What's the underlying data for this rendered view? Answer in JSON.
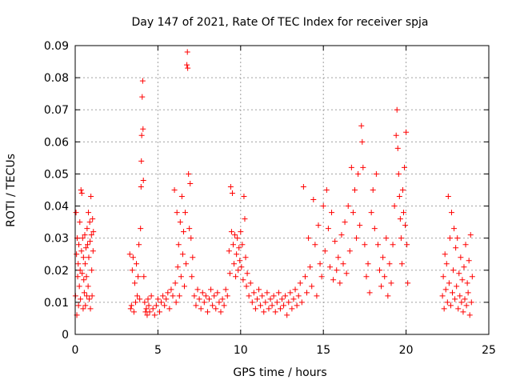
{
  "chart_data": {
    "type": "scatter",
    "title": "Day 147 of 2021, Rate Of TEC Index for receiver spja",
    "xlabel": "GPS time / hours",
    "ylabel": "ROTI / TECUs",
    "xlim": [
      0,
      25
    ],
    "ylim": [
      0,
      0.09
    ],
    "xticks": [
      "0",
      "5",
      "10",
      "15",
      "20",
      "25"
    ],
    "yticks": [
      "0",
      "0.01",
      "0.02",
      "0.03",
      "0.04",
      "0.05",
      "0.06",
      "0.07",
      "0.08",
      "0.09"
    ],
    "grid": true,
    "marker": "plus",
    "color": "#ff0000",
    "series": [
      {
        "points": [
          [
            0.02,
            0.012
          ],
          [
            0.05,
            0.038
          ],
          [
            0.08,
            0.025
          ],
          [
            0.1,
            0.006
          ],
          [
            0.12,
            0.03
          ],
          [
            0.15,
            0.018
          ],
          [
            0.18,
            0.022
          ],
          [
            0.2,
            0.009
          ],
          [
            0.22,
            0.028
          ],
          [
            0.25,
            0.015
          ],
          [
            0.28,
            0.035
          ],
          [
            0.3,
            0.02
          ],
          [
            0.32,
            0.011
          ],
          [
            0.35,
            0.045
          ],
          [
            0.38,
            0.026
          ],
          [
            0.4,
            0.044
          ],
          [
            0.42,
            0.019
          ],
          [
            0.45,
            0.03
          ],
          [
            0.48,
            0.008
          ],
          [
            0.5,
            0.024
          ],
          [
            0.52,
            0.017
          ],
          [
            0.55,
            0.013
          ],
          [
            0.58,
            0.031
          ],
          [
            0.6,
            0.022
          ],
          [
            0.62,
            0.009
          ],
          [
            0.65,
            0.027
          ],
          [
            0.68,
            0.018
          ],
          [
            0.7,
            0.012
          ],
          [
            0.72,
            0.033
          ],
          [
            0.75,
            0.028
          ],
          [
            0.78,
            0.015
          ],
          [
            0.8,
            0.038
          ],
          [
            0.82,
            0.024
          ],
          [
            0.85,
            0.011
          ],
          [
            0.88,
            0.035
          ],
          [
            0.9,
            0.029
          ],
          [
            0.92,
            0.008
          ],
          [
            0.95,
            0.043
          ],
          [
            0.98,
            0.031
          ],
          [
            1.0,
            0.02
          ],
          [
            1.02,
            0.012
          ],
          [
            1.05,
            0.036
          ],
          [
            1.08,
            0.026
          ],
          [
            1.1,
            0.032
          ],
          [
            3.3,
            0.025
          ],
          [
            3.35,
            0.008
          ],
          [
            3.4,
            0.009
          ],
          [
            3.45,
            0.02
          ],
          [
            3.5,
            0.024
          ],
          [
            3.55,
            0.007
          ],
          [
            3.6,
            0.016
          ],
          [
            3.65,
            0.01
          ],
          [
            3.7,
            0.022
          ],
          [
            3.75,
            0.012
          ],
          [
            3.8,
            0.018
          ],
          [
            3.85,
            0.028
          ],
          [
            3.9,
            0.011
          ],
          [
            3.95,
            0.033
          ],
          [
            3.98,
            0.046
          ],
          [
            4.0,
            0.054
          ],
          [
            4.02,
            0.062
          ],
          [
            4.05,
            0.074
          ],
          [
            4.08,
            0.079
          ],
          [
            4.1,
            0.064
          ],
          [
            4.12,
            0.048
          ],
          [
            4.15,
            0.018
          ],
          [
            4.2,
            0.01
          ],
          [
            4.25,
            0.007
          ],
          [
            4.3,
            0.008
          ],
          [
            4.35,
            0.006
          ],
          [
            4.4,
            0.011
          ],
          [
            4.45,
            0.009
          ],
          [
            4.5,
            0.007
          ],
          [
            4.6,
            0.012
          ],
          [
            4.7,
            0.008
          ],
          [
            4.8,
            0.006
          ],
          [
            4.9,
            0.009
          ],
          [
            5.0,
            0.011
          ],
          [
            5.1,
            0.007
          ],
          [
            5.2,
            0.01
          ],
          [
            5.3,
            0.012
          ],
          [
            5.4,
            0.009
          ],
          [
            5.5,
            0.011
          ],
          [
            5.6,
            0.013
          ],
          [
            5.7,
            0.008
          ],
          [
            5.8,
            0.014
          ],
          [
            5.9,
            0.012
          ],
          [
            6.0,
            0.045
          ],
          [
            6.05,
            0.016
          ],
          [
            6.1,
            0.01
          ],
          [
            6.15,
            0.038
          ],
          [
            6.2,
            0.021
          ],
          [
            6.25,
            0.028
          ],
          [
            6.3,
            0.012
          ],
          [
            6.35,
            0.035
          ],
          [
            6.4,
            0.018
          ],
          [
            6.45,
            0.043
          ],
          [
            6.5,
            0.025
          ],
          [
            6.55,
            0.032
          ],
          [
            6.6,
            0.015
          ],
          [
            6.65,
            0.038
          ],
          [
            6.7,
            0.022
          ],
          [
            6.75,
            0.084
          ],
          [
            6.78,
            0.088
          ],
          [
            6.8,
            0.083
          ],
          [
            6.85,
            0.05
          ],
          [
            6.9,
            0.033
          ],
          [
            6.95,
            0.047
          ],
          [
            7.0,
            0.03
          ],
          [
            7.05,
            0.018
          ],
          [
            7.1,
            0.024
          ],
          [
            7.2,
            0.012
          ],
          [
            7.3,
            0.009
          ],
          [
            7.4,
            0.014
          ],
          [
            7.5,
            0.011
          ],
          [
            7.6,
            0.008
          ],
          [
            7.7,
            0.013
          ],
          [
            7.8,
            0.01
          ],
          [
            7.9,
            0.012
          ],
          [
            8.0,
            0.007
          ],
          [
            8.1,
            0.011
          ],
          [
            8.2,
            0.014
          ],
          [
            8.3,
            0.009
          ],
          [
            8.4,
            0.012
          ],
          [
            8.5,
            0.008
          ],
          [
            8.6,
            0.013
          ],
          [
            8.7,
            0.01
          ],
          [
            8.8,
            0.007
          ],
          [
            8.9,
            0.011
          ],
          [
            9.0,
            0.009
          ],
          [
            9.1,
            0.014
          ],
          [
            9.2,
            0.012
          ],
          [
            9.3,
            0.026
          ],
          [
            9.35,
            0.019
          ],
          [
            9.4,
            0.046
          ],
          [
            9.45,
            0.032
          ],
          [
            9.5,
            0.044
          ],
          [
            9.55,
            0.028
          ],
          [
            9.6,
            0.022
          ],
          [
            9.65,
            0.031
          ],
          [
            9.7,
            0.018
          ],
          [
            9.75,
            0.025
          ],
          [
            9.8,
            0.03
          ],
          [
            9.85,
            0.02
          ],
          [
            9.9,
            0.027
          ],
          [
            9.95,
            0.023
          ],
          [
            10.0,
            0.032
          ],
          [
            10.05,
            0.021
          ],
          [
            10.1,
            0.028
          ],
          [
            10.15,
            0.017
          ],
          [
            10.2,
            0.043
          ],
          [
            10.25,
            0.036
          ],
          [
            10.3,
            0.024
          ],
          [
            10.35,
            0.015
          ],
          [
            10.4,
            0.019
          ],
          [
            10.5,
            0.012
          ],
          [
            10.6,
            0.016
          ],
          [
            10.7,
            0.01
          ],
          [
            10.8,
            0.013
          ],
          [
            10.9,
            0.008
          ],
          [
            11.0,
            0.011
          ],
          [
            11.1,
            0.014
          ],
          [
            11.2,
            0.009
          ],
          [
            11.3,
            0.012
          ],
          [
            11.4,
            0.007
          ],
          [
            11.5,
            0.01
          ],
          [
            11.6,
            0.013
          ],
          [
            11.7,
            0.008
          ],
          [
            11.8,
            0.011
          ],
          [
            11.9,
            0.009
          ],
          [
            12.0,
            0.012
          ],
          [
            12.1,
            0.007
          ],
          [
            12.2,
            0.01
          ],
          [
            12.3,
            0.013
          ],
          [
            12.4,
            0.008
          ],
          [
            12.5,
            0.011
          ],
          [
            12.6,
            0.009
          ],
          [
            12.7,
            0.012
          ],
          [
            12.8,
            0.006
          ],
          [
            12.9,
            0.01
          ],
          [
            13.0,
            0.013
          ],
          [
            13.1,
            0.008
          ],
          [
            13.2,
            0.011
          ],
          [
            13.3,
            0.014
          ],
          [
            13.4,
            0.009
          ],
          [
            13.5,
            0.012
          ],
          [
            13.6,
            0.016
          ],
          [
            13.7,
            0.01
          ],
          [
            13.8,
            0.046
          ],
          [
            13.9,
            0.018
          ],
          [
            14.0,
            0.013
          ],
          [
            14.1,
            0.03
          ],
          [
            14.2,
            0.021
          ],
          [
            14.3,
            0.015
          ],
          [
            14.4,
            0.042
          ],
          [
            14.5,
            0.028
          ],
          [
            14.6,
            0.012
          ],
          [
            14.7,
            0.034
          ],
          [
            14.8,
            0.022
          ],
          [
            14.9,
            0.018
          ],
          [
            15.0,
            0.04
          ],
          [
            15.1,
            0.026
          ],
          [
            15.2,
            0.045
          ],
          [
            15.3,
            0.033
          ],
          [
            15.4,
            0.021
          ],
          [
            15.5,
            0.038
          ],
          [
            15.6,
            0.017
          ],
          [
            15.7,
            0.029
          ],
          [
            15.8,
            0.02
          ],
          [
            15.9,
            0.024
          ],
          [
            16.0,
            0.016
          ],
          [
            16.1,
            0.031
          ],
          [
            16.2,
            0.022
          ],
          [
            16.3,
            0.035
          ],
          [
            16.4,
            0.019
          ],
          [
            16.5,
            0.04
          ],
          [
            16.6,
            0.026
          ],
          [
            16.7,
            0.052
          ],
          [
            16.8,
            0.038
          ],
          [
            16.9,
            0.045
          ],
          [
            17.0,
            0.03
          ],
          [
            17.1,
            0.05
          ],
          [
            17.2,
            0.034
          ],
          [
            17.3,
            0.065
          ],
          [
            17.35,
            0.06
          ],
          [
            17.4,
            0.052
          ],
          [
            17.5,
            0.028
          ],
          [
            17.6,
            0.018
          ],
          [
            17.7,
            0.022
          ],
          [
            17.8,
            0.013
          ],
          [
            17.9,
            0.038
          ],
          [
            18.0,
            0.045
          ],
          [
            18.1,
            0.033
          ],
          [
            18.2,
            0.05
          ],
          [
            18.3,
            0.028
          ],
          [
            18.4,
            0.02
          ],
          [
            18.5,
            0.015
          ],
          [
            18.6,
            0.024
          ],
          [
            18.7,
            0.018
          ],
          [
            18.8,
            0.03
          ],
          [
            18.9,
            0.012
          ],
          [
            19.0,
            0.022
          ],
          [
            19.1,
            0.016
          ],
          [
            19.2,
            0.028
          ],
          [
            19.3,
            0.04
          ],
          [
            19.4,
            0.062
          ],
          [
            19.45,
            0.07
          ],
          [
            19.5,
            0.058
          ],
          [
            19.55,
            0.05
          ],
          [
            19.6,
            0.043
          ],
          [
            19.65,
            0.036
          ],
          [
            19.7,
            0.03
          ],
          [
            19.75,
            0.022
          ],
          [
            19.8,
            0.045
          ],
          [
            19.85,
            0.038
          ],
          [
            19.9,
            0.052
          ],
          [
            19.95,
            0.034
          ],
          [
            20.0,
            0.063
          ],
          [
            20.05,
            0.028
          ],
          [
            20.1,
            0.016
          ],
          [
            22.2,
            0.012
          ],
          [
            22.25,
            0.018
          ],
          [
            22.3,
            0.008
          ],
          [
            22.35,
            0.025
          ],
          [
            22.4,
            0.014
          ],
          [
            22.45,
            0.022
          ],
          [
            22.5,
            0.01
          ],
          [
            22.55,
            0.043
          ],
          [
            22.6,
            0.016
          ],
          [
            22.65,
            0.03
          ],
          [
            22.7,
            0.009
          ],
          [
            22.75,
            0.038
          ],
          [
            22.8,
            0.013
          ],
          [
            22.85,
            0.02
          ],
          [
            22.9,
            0.033
          ],
          [
            22.95,
            0.011
          ],
          [
            23.0,
            0.027
          ],
          [
            23.05,
            0.015
          ],
          [
            23.1,
            0.03
          ],
          [
            23.15,
            0.008
          ],
          [
            23.2,
            0.019
          ],
          [
            23.25,
            0.012
          ],
          [
            23.3,
            0.024
          ],
          [
            23.35,
            0.01
          ],
          [
            23.4,
            0.017
          ],
          [
            23.45,
            0.007
          ],
          [
            23.5,
            0.021
          ],
          [
            23.55,
            0.011
          ],
          [
            23.6,
            0.028
          ],
          [
            23.65,
            0.009
          ],
          [
            23.7,
            0.016
          ],
          [
            23.75,
            0.013
          ],
          [
            23.8,
            0.023
          ],
          [
            23.85,
            0.006
          ],
          [
            23.9,
            0.031
          ],
          [
            23.95,
            0.01
          ],
          [
            24.0,
            0.018
          ]
        ]
      }
    ]
  }
}
